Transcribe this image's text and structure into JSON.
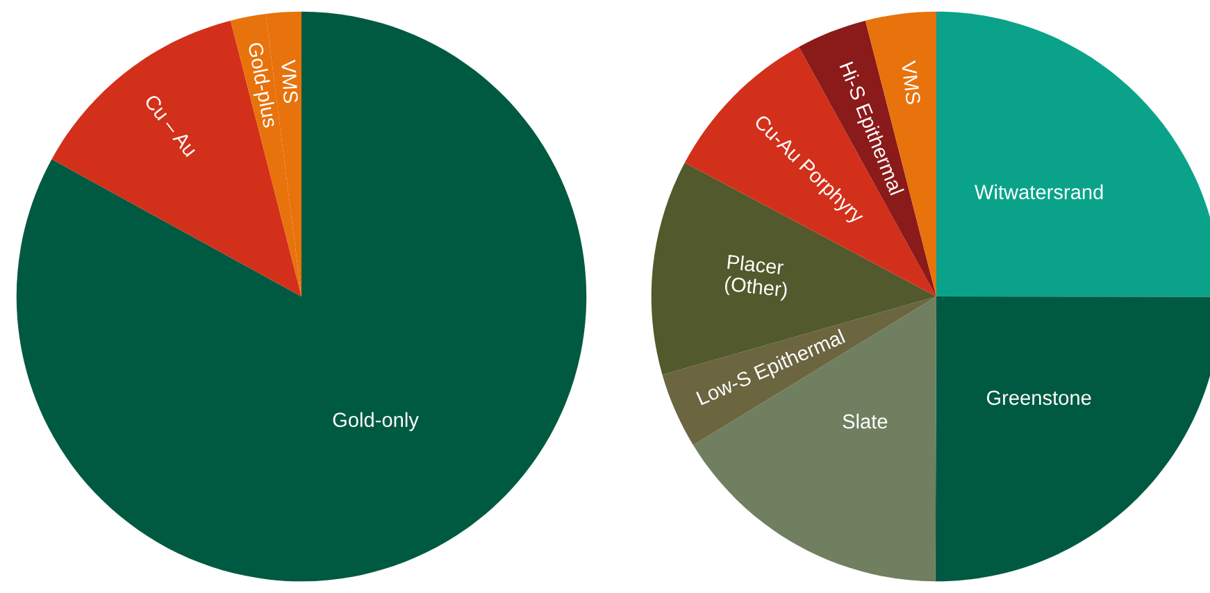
{
  "chart_data": [
    {
      "type": "pie",
      "categories": [
        "Gold-only",
        "Cu – Au",
        "Gold-plus",
        "VMS"
      ],
      "values": [
        83,
        13,
        2,
        2
      ],
      "colors": [
        "#005a41",
        "#d2301a",
        "#e8720c",
        "#e8720c"
      ]
    },
    {
      "type": "pie",
      "categories": [
        "Witwatersrand",
        "Greenstone",
        "Slate",
        "Low-S Epithermal",
        "Placer\n(Other)",
        "Cu-Au Porphyry",
        "Hi-S Epithermal",
        "VMS"
      ],
      "values": [
        25,
        25,
        16.2,
        4.3,
        12.2,
        9.2,
        4,
        4
      ],
      "colors": [
        "#0aa38a",
        "#005a41",
        "#6f7f5f",
        "#6b6540",
        "#52592c",
        "#d2301a",
        "#8b1a1a",
        "#e8720c"
      ]
    }
  ]
}
